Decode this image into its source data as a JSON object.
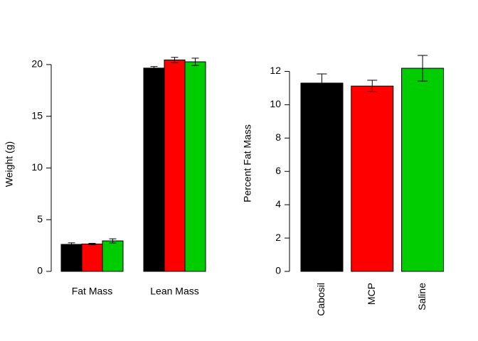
{
  "chart_data": [
    {
      "type": "grouped-bar",
      "ylabel": "Weight (g)",
      "categories": [
        "Fat Mass",
        "Lean Mass"
      ],
      "series": [
        {
          "color": "#000000",
          "values": [
            2.61,
            19.66
          ],
          "errors": [
            0.15,
            0.15
          ]
        },
        {
          "color": "#ff0000",
          "values": [
            2.65,
            20.45
          ],
          "errors": [
            0.06,
            0.25
          ]
        },
        {
          "color": "#00cd00",
          "values": [
            2.95,
            20.27
          ],
          "errors": [
            0.2,
            0.35
          ]
        }
      ],
      "ylim": [
        0,
        20.75
      ],
      "yticks": [
        0,
        5,
        10,
        15,
        20
      ]
    },
    {
      "type": "bar",
      "ylabel": "Percent Fat Mass",
      "categories": [
        "Cabosil",
        "MCP",
        "Saline"
      ],
      "values": [
        11.3,
        11.12,
        12.19
      ],
      "errors": [
        0.55,
        0.35,
        0.77
      ],
      "colors": [
        "#000000",
        "#ff0000",
        "#00cd00"
      ],
      "ylim": [
        0,
        12.96
      ],
      "yticks": [
        0,
        2,
        4,
        6,
        8,
        10,
        12
      ]
    }
  ]
}
